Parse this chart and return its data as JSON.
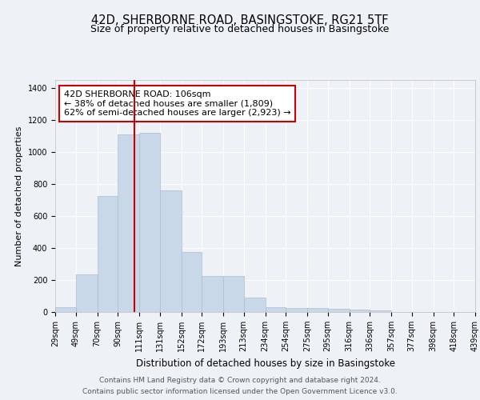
{
  "title1": "42D, SHERBORNE ROAD, BASINGSTOKE, RG21 5TF",
  "title2": "Size of property relative to detached houses in Basingstoke",
  "xlabel": "Distribution of detached houses by size in Basingstoke",
  "ylabel": "Number of detached properties",
  "categories": [
    "29sqm",
    "49sqm",
    "70sqm",
    "90sqm",
    "111sqm",
    "131sqm",
    "152sqm",
    "172sqm",
    "193sqm",
    "213sqm",
    "234sqm",
    "254sqm",
    "275sqm",
    "295sqm",
    "316sqm",
    "336sqm",
    "357sqm",
    "377sqm",
    "398sqm",
    "418sqm",
    "439sqm"
  ],
  "bin_edges": [
    29,
    49,
    70,
    90,
    111,
    131,
    152,
    172,
    193,
    213,
    234,
    254,
    275,
    295,
    316,
    336,
    357,
    377,
    398,
    418,
    439
  ],
  "bar_heights": [
    30,
    235,
    725,
    1110,
    1120,
    760,
    375,
    225,
    225,
    90,
    30,
    25,
    25,
    20,
    15,
    10,
    0,
    0,
    0,
    0
  ],
  "bar_color": "#c8d8e8",
  "bar_edgecolor": "#aabcce",
  "vline_x": 106,
  "vline_color": "#cc0000",
  "ylim": [
    0,
    1450
  ],
  "yticks": [
    0,
    200,
    400,
    600,
    800,
    1000,
    1200,
    1400
  ],
  "annotation_text": "42D SHERBORNE ROAD: 106sqm\n← 38% of detached houses are smaller (1,809)\n62% of semi-detached houses are larger (2,923) →",
  "footer_line1": "Contains HM Land Registry data © Crown copyright and database right 2024.",
  "footer_line2": "Contains public sector information licensed under the Open Government Licence v3.0.",
  "background_color": "#eef2f7",
  "plot_background": "#eef2f7",
  "grid_color": "#ffffff",
  "title1_fontsize": 10.5,
  "title2_fontsize": 9,
  "xlabel_fontsize": 8.5,
  "ylabel_fontsize": 8,
  "tick_fontsize": 7,
  "annotation_fontsize": 8,
  "footer_fontsize": 6.5
}
